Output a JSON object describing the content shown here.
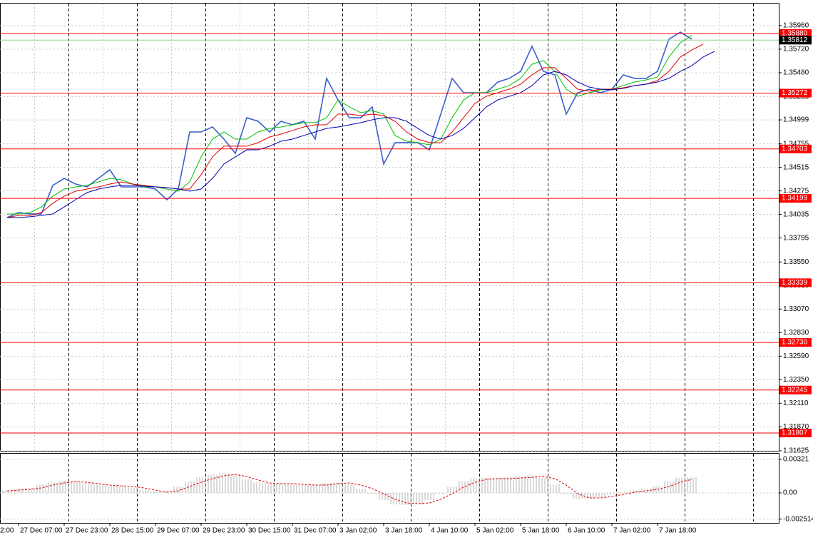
{
  "chart_data": [
    {
      "type": "line",
      "ylim": [
        1.31625,
        1.36185
      ],
      "yticks": [
        {
          "value": 1.3596,
          "label": "1.35960"
        },
        {
          "value": 1.3572,
          "label": "1.35720"
        },
        {
          "value": 1.3548,
          "label": "1.35480"
        },
        1.35235,
        1.34999,
        1.34755,
        1.34515,
        1.34275,
        1.34035,
        1.33795,
        {
          "value": 1.3355,
          "label": "1.33550"
        },
        {
          "value": 1.3331,
          "label": "1.33310"
        },
        {
          "value": 1.3307,
          "label": "1.33070"
        },
        {
          "value": 1.3283,
          "label": "1.32830"
        },
        {
          "value": 1.3259,
          "label": "1.32590"
        },
        {
          "value": 1.3235,
          "label": "1.32350"
        },
        {
          "value": 1.3211,
          "label": "1.32110"
        },
        {
          "value": 1.3187,
          "label": "1.31870"
        },
        1.31625
      ],
      "grid": true,
      "levels": [
        {
          "value": 1.3588,
          "label": "1.35880"
        },
        1.35272,
        1.34703,
        1.34199,
        1.33339,
        {
          "value": 1.3273,
          "label": "1.32730"
        },
        1.32245,
        1.31807
      ],
      "level_color": "#ff0000",
      "current_price": 1.35812,
      "current_color": "#000000",
      "series": [
        {
          "color": "#3a5fcd",
          "values": [
            1.34003,
            1.34054,
            1.3404,
            1.3404,
            1.34331,
            1.34403,
            1.34345,
            1.34316,
            1.34403,
            1.34491,
            1.34316,
            1.34316,
            1.34316,
            1.34294,
            1.34185,
            1.34294,
            1.34876,
            1.34876,
            1.34927,
            1.34803,
            1.34658,
            1.35021,
            1.34985,
            1.34876,
            1.34985,
            1.34949,
            1.34985,
            1.34803,
            1.35422,
            1.35203,
            1.35021,
            1.35021,
            1.35131,
            1.34549,
            1.34767,
            1.34767,
            1.34767,
            1.34694,
            1.35058,
            1.35422,
            1.35276,
            1.35276,
            1.35276,
            1.35385,
            1.35422,
            1.35494,
            1.35749,
            1.35494,
            1.35458,
            1.35058,
            1.35276,
            1.35312,
            1.35276,
            1.35312,
            1.35458,
            1.35422,
            1.35422,
            1.35494,
            1.35822,
            1.35894,
            1.35822,
            null,
            null,
            null,
            null,
            null,
            null,
            null
          ]
        },
        {
          "color": "#00c000",
          "values": [
            1.3404,
            1.3404,
            1.34054,
            1.34112,
            1.34221,
            1.34294,
            1.34316,
            1.34331,
            1.34367,
            1.34403,
            1.34389,
            1.34345,
            1.34316,
            1.34316,
            1.34294,
            1.34272,
            1.34367,
            1.34622,
            1.34803,
            1.34876,
            1.34803,
            1.34803,
            1.34876,
            1.34912,
            1.34927,
            1.34949,
            1.34971,
            1.34971,
            1.35021,
            1.35203,
            1.35131,
            1.35072,
            1.35094,
            1.35058,
            1.3484,
            1.34782,
            1.34767,
            1.34745,
            1.34803,
            1.35021,
            1.35203,
            1.35276,
            1.35276,
            1.35312,
            1.35349,
            1.35422,
            1.35567,
            1.35603,
            1.35494,
            1.35312,
            1.3524,
            1.35276,
            1.35305,
            1.35312,
            1.35349,
            1.35385,
            1.35407,
            1.35436,
            1.3564,
            1.35785,
            1.35858,
            null,
            null,
            null,
            null,
            null,
            null,
            null
          ]
        },
        {
          "color": "#e00000",
          "values": [
            1.34003,
            1.34025,
            1.34025,
            1.34054,
            1.34149,
            1.34221,
            1.34272,
            1.34294,
            1.34316,
            1.34345,
            1.34367,
            1.34345,
            1.34331,
            1.34316,
            1.34309,
            1.34294,
            1.34294,
            1.3444,
            1.34622,
            1.34731,
            1.34731,
            1.34731,
            1.34767,
            1.34825,
            1.34854,
            1.34891,
            1.34927,
            1.34949,
            1.34949,
            1.35058,
            1.35058,
            1.35043,
            1.35058,
            1.35043,
            1.34985,
            1.34876,
            1.34803,
            1.34767,
            1.34767,
            1.34876,
            1.35021,
            1.35167,
            1.3524,
            1.35276,
            1.35312,
            1.35363,
            1.35458,
            1.35531,
            1.35531,
            1.35422,
            1.35312,
            1.35291,
            1.35312,
            1.35312,
            1.35327,
            1.35349,
            1.35363,
            1.354,
            1.35494,
            1.3564,
            1.35712,
            1.35771,
            null,
            null,
            null,
            null,
            null,
            null
          ]
        },
        {
          "color": "#0000b0",
          "values": [
            1.34003,
            1.34003,
            1.34011,
            1.34025,
            1.3404,
            1.34112,
            1.34185,
            1.34258,
            1.34294,
            1.34316,
            1.34331,
            1.34331,
            1.34323,
            1.34316,
            1.34309,
            1.34294,
            1.34272,
            1.34294,
            1.34403,
            1.34549,
            1.34622,
            1.34694,
            1.34694,
            1.34731,
            1.34782,
            1.34803,
            1.3484,
            1.34876,
            1.34912,
            1.34927,
            1.34949,
            1.34971,
            1.35,
            1.35021,
            1.35021,
            1.34985,
            1.34912,
            1.3484,
            1.34803,
            1.3484,
            1.34912,
            1.35021,
            1.35131,
            1.35203,
            1.3524,
            1.35276,
            1.35349,
            1.35458,
            1.35494,
            1.35458,
            1.35385,
            1.35334,
            1.35312,
            1.35305,
            1.3532,
            1.35349,
            1.35363,
            1.35385,
            1.35422,
            1.35494,
            1.35552,
            1.3564,
            1.35698,
            null,
            null,
            null,
            null,
            null
          ]
        }
      ]
    },
    {
      "type": "bar",
      "categories": [
        "2:00",
        "27 Dec 07:00",
        null,
        null,
        null,
        "27 Dec 23:00",
        null,
        null,
        null,
        "28 Dec 15:00",
        null,
        null,
        null,
        "29 Dec 07:00",
        null,
        null,
        null,
        "29 Dec 23:00",
        null,
        null,
        null,
        "30 Dec 15:00",
        null,
        null,
        null,
        "31 Dec 07:00",
        null,
        null,
        null,
        "3 Jan 02:00",
        null,
        null,
        null,
        "3 Jan 18:00",
        null,
        null,
        null,
        "4 Jan 10:00",
        null,
        null,
        null,
        "5 Jan 02:00",
        null,
        null,
        null,
        "5 Jan 18:00",
        null,
        null,
        null,
        "6 Jan 10:00",
        null,
        null,
        null,
        "7 Jan 02:00",
        null,
        null,
        null,
        "7 Jan 18:00",
        null,
        null,
        null,
        null,
        null,
        null,
        null,
        null,
        null,
        null
      ],
      "ylim": [
        -0.00287,
        0.00376
      ],
      "yticks": [
        0.00321,
        {
          "value": 0,
          "label": "0.00"
        },
        -0.002514
      ],
      "grid": true,
      "series": [
        {
          "color": "#b4b4b4",
          "values": [
            0.00025,
            0.00035,
            0.0005,
            0.0008,
            0.001,
            0.00115,
            0.0011,
            0.00095,
            0.0008,
            0.0007,
            0.00065,
            0.0005,
            0.0003,
            0.0001,
            0.00015,
            0.0006,
            0.0011,
            0.0015,
            0.00175,
            0.0019,
            0.0017,
            0.0013,
            0.001,
            0.00095,
            0.0009,
            0.00085,
            0.0008,
            0.0008,
            0.00095,
            0.001,
            0.0008,
            0.0004,
            -0.0001,
            -0.0007,
            -0.0011,
            -0.00115,
            -0.0011,
            -0.0007,
            -0.0001,
            0.0006,
            0.0011,
            0.0014,
            0.00145,
            0.00145,
            0.0015,
            0.0016,
            0.00165,
            0.00145,
            0.0008,
            -0.0001,
            -0.0006,
            -0.00055,
            -0.0004,
            -0.00015,
            5e-05,
            0.00025,
            0.0004,
            0.00065,
            0.0011,
            0.00145,
            0.0015,
            null,
            null,
            null,
            null,
            null,
            null,
            null
          ]
        },
        {
          "color": "#e00000",
          "dashed": true,
          "values": [
            0.0002,
            0.00027,
            0.00034,
            0.00048,
            0.00075,
            0.00096,
            0.00109,
            0.00102,
            0.00089,
            0.00075,
            0.00068,
            0.00061,
            0.00048,
            0.00027,
            7e-05,
            0.0002,
            0.00061,
            0.00102,
            0.00137,
            0.00164,
            0.00178,
            0.00157,
            0.00123,
            0.00096,
            0.00089,
            0.00089,
            0.00082,
            0.00075,
            0.00075,
            0.00089,
            0.00096,
            0.00075,
            0.00041,
            -7e-05,
            -0.00061,
            -0.00096,
            -0.00102,
            -0.00096,
            -0.00061,
            -7e-05,
            0.00055,
            0.00102,
            0.0013,
            0.00137,
            0.00137,
            0.00143,
            0.0015,
            0.00157,
            0.00137,
            0.00075,
            -7e-05,
            -0.00048,
            -0.00048,
            -0.00034,
            -0.00014,
            7e-05,
            0.0002,
            0.00034,
            0.00061,
            0.00102,
            0.0013,
            null,
            null,
            null,
            null,
            null,
            null,
            null
          ]
        }
      ]
    }
  ]
}
